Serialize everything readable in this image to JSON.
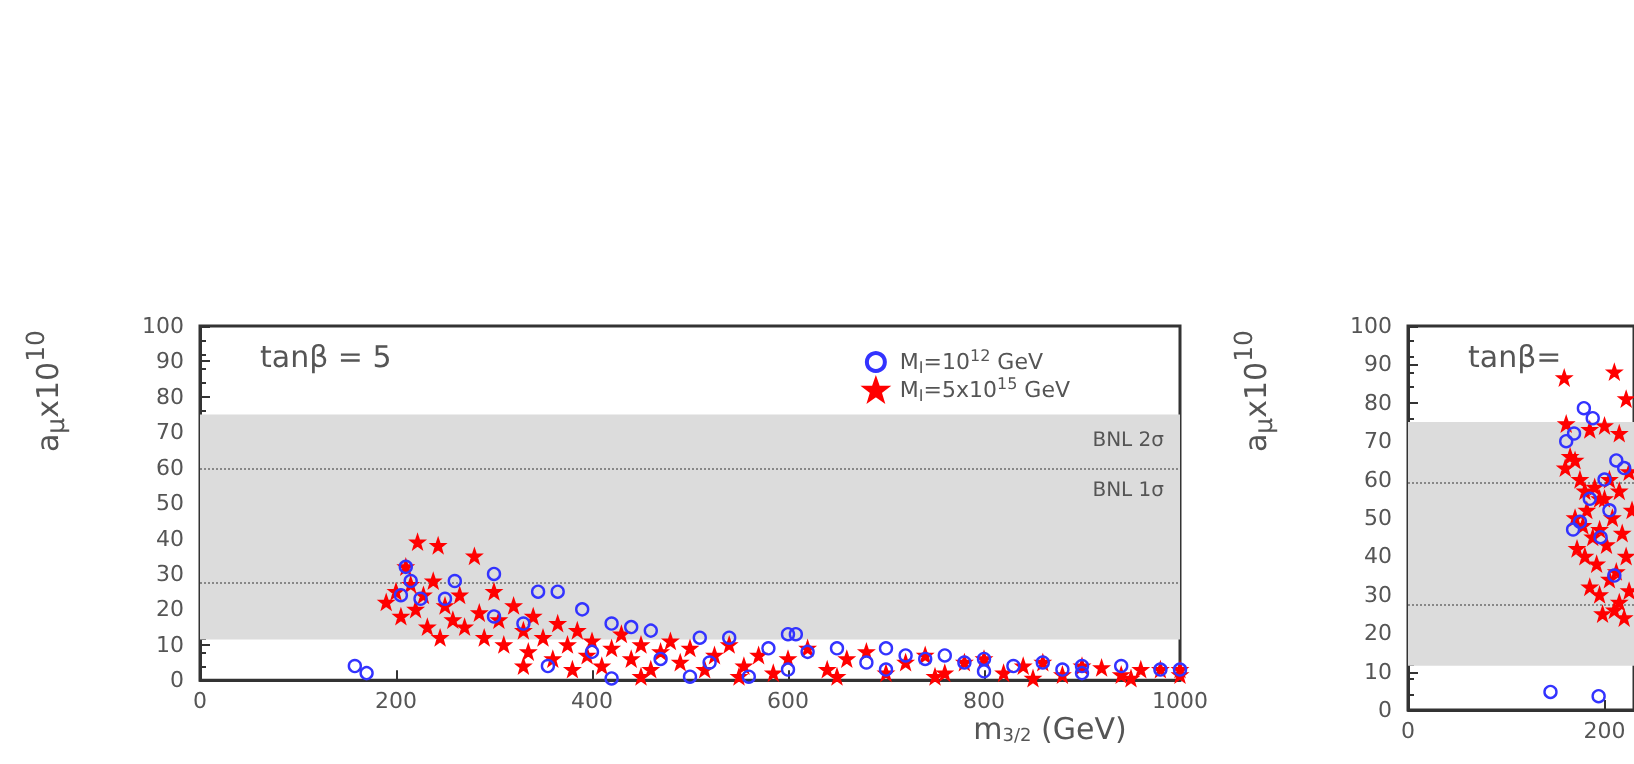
{
  "chart_data": [
    {
      "type": "scatter",
      "xlabel": "m$_{3/2}$ (GeV)",
      "ylabel": "a$_{μ}$x10$^{10}$",
      "annotations": [
        "tanβ = 5"
      ],
      "xlim": [
        0,
        1000
      ],
      "xticks": [
        0,
        200,
        400,
        600,
        800,
        1000
      ],
      "ylim": [
        0,
        100
      ],
      "yticks": [
        0,
        10,
        20,
        30,
        40,
        50,
        60,
        70,
        80,
        90,
        100
      ],
      "grid": false,
      "legend": "top right",
      "bands": [
        {
          "axis": "y",
          "from": 11.5,
          "to": 75,
          "label": "BNL 2σ",
          "color": "#dcdcdc"
        }
      ],
      "ref_lines": [
        {
          "axis": "y",
          "value": 59.5,
          "label": "BNL 1σ",
          "color": "#888888",
          "line_style": "dotted"
        },
        {
          "axis": "y",
          "value": 27.5,
          "color": "#888888",
          "line_style": "dotted"
        }
      ],
      "series": [
        {
          "name": "M$_{I}$=10$^{12}$ GeV",
          "color": "#3333ff",
          "marker": "circle",
          "x": [
            158,
            170,
            205,
            210,
            215,
            225,
            250,
            260,
            300,
            345,
            355,
            365,
            390,
            420,
            420,
            440,
            460,
            500,
            510,
            540,
            560,
            580,
            600,
            608,
            620,
            650,
            680,
            700,
            720,
            740,
            760,
            780,
            800,
            830,
            860,
            880,
            900,
            940,
            980,
            1000,
            300,
            330,
            400,
            470,
            520,
            600,
            700,
            800,
            900
          ],
          "values": [
            4,
            2,
            24,
            32,
            28,
            23,
            23,
            28,
            30,
            25,
            4,
            25,
            20,
            16,
            0.5,
            15,
            14,
            1,
            12,
            12,
            1,
            9,
            13,
            13,
            8,
            9,
            5,
            9,
            7,
            6,
            7,
            5,
            6,
            4,
            5,
            3,
            4,
            4,
            3,
            3,
            18,
            16,
            8,
            6,
            5,
            3,
            3,
            2.5,
            2
          ]
        },
        {
          "name": "M$_{I}$=5x10$^{15}$ GeV",
          "color": "#ff0000",
          "marker": "star",
          "x": [
            190,
            200,
            205,
            210,
            215,
            220,
            222,
            228,
            232,
            238,
            243,
            245,
            250,
            258,
            265,
            270,
            280,
            285,
            290,
            300,
            305,
            310,
            320,
            330,
            335,
            340,
            350,
            360,
            365,
            375,
            385,
            395,
            400,
            410,
            420,
            430,
            440,
            450,
            460,
            470,
            480,
            490,
            500,
            515,
            525,
            540,
            555,
            570,
            585,
            600,
            620,
            640,
            660,
            680,
            700,
            720,
            740,
            760,
            780,
            800,
            820,
            840,
            860,
            880,
            900,
            920,
            940,
            960,
            980,
            1000,
            1000,
            330,
            380,
            450,
            550,
            650,
            750,
            850,
            950
          ],
          "values": [
            22,
            25,
            18,
            32,
            27,
            20,
            39,
            24,
            15,
            28,
            38,
            12,
            21,
            17,
            24,
            15,
            35,
            19,
            12,
            25,
            17,
            10,
            21,
            14,
            8,
            18,
            12,
            6,
            16,
            10,
            14,
            7,
            11,
            4,
            9,
            13,
            6,
            10,
            3,
            8,
            11,
            5,
            9,
            3,
            7,
            10,
            4,
            7,
            2,
            6,
            9,
            3,
            6,
            8,
            2,
            5,
            7,
            2,
            5,
            6,
            2,
            4,
            5,
            1.5,
            4,
            3.5,
            1.5,
            3,
            3,
            1.5,
            3,
            4,
            3,
            1,
            1,
            1,
            1,
            0.5,
            0.5
          ]
        }
      ]
    },
    {
      "type": "scatter",
      "ylabel": "a$_{μ}$x10$^{10}$",
      "annotations": [
        "tanβ="
      ],
      "xlim": [
        0,
        230
      ],
      "xticks": [
        0,
        200
      ],
      "ylim": [
        0,
        100
      ],
      "yticks": [
        0,
        10,
        20,
        30,
        40,
        50,
        60,
        70,
        80,
        90,
        100
      ],
      "grid": false,
      "bands": [
        {
          "axis": "y",
          "from": 11.5,
          "to": 75,
          "color": "#dcdcdc"
        }
      ],
      "ref_lines": [
        {
          "axis": "y",
          "value": 59.5,
          "color": "#888888",
          "line_style": "dotted"
        },
        {
          "axis": "y",
          "value": 27.5,
          "color": "#888888",
          "line_style": "dotted"
        }
      ],
      "series": [
        {
          "color": "#3333ff",
          "marker": "circle",
          "x": [
            145,
            194,
            179,
            188,
            169,
            161,
            212,
            200,
            175,
            168,
            185,
            205,
            220,
            196,
            210
          ],
          "values": [
            4.7,
            3.6,
            78.6,
            76,
            72,
            70,
            65,
            60,
            49,
            47,
            55,
            52,
            63,
            45,
            35
          ]
        },
        {
          "color": "#ff0000",
          "marker": "star",
          "x": [
            159,
            210,
            222,
            161,
            185,
            200,
            215,
            165,
            160,
            170,
            175,
            180,
            190,
            195,
            205,
            215,
            225,
            170,
            178,
            182,
            188,
            195,
            200,
            208,
            218,
            228,
            172,
            180,
            192,
            202,
            212,
            222,
            185,
            195,
            205,
            215,
            225,
            198,
            210,
            220
          ],
          "values": [
            86.5,
            88,
            81,
            74.5,
            73,
            74,
            72,
            66,
            63,
            65,
            60,
            57,
            58,
            55,
            60,
            57,
            62,
            50,
            48,
            52,
            45,
            47,
            55,
            50,
            46,
            52,
            42,
            40,
            38,
            43,
            36,
            40,
            32,
            30,
            34,
            28,
            31,
            25,
            26,
            24
          ]
        }
      ]
    }
  ]
}
